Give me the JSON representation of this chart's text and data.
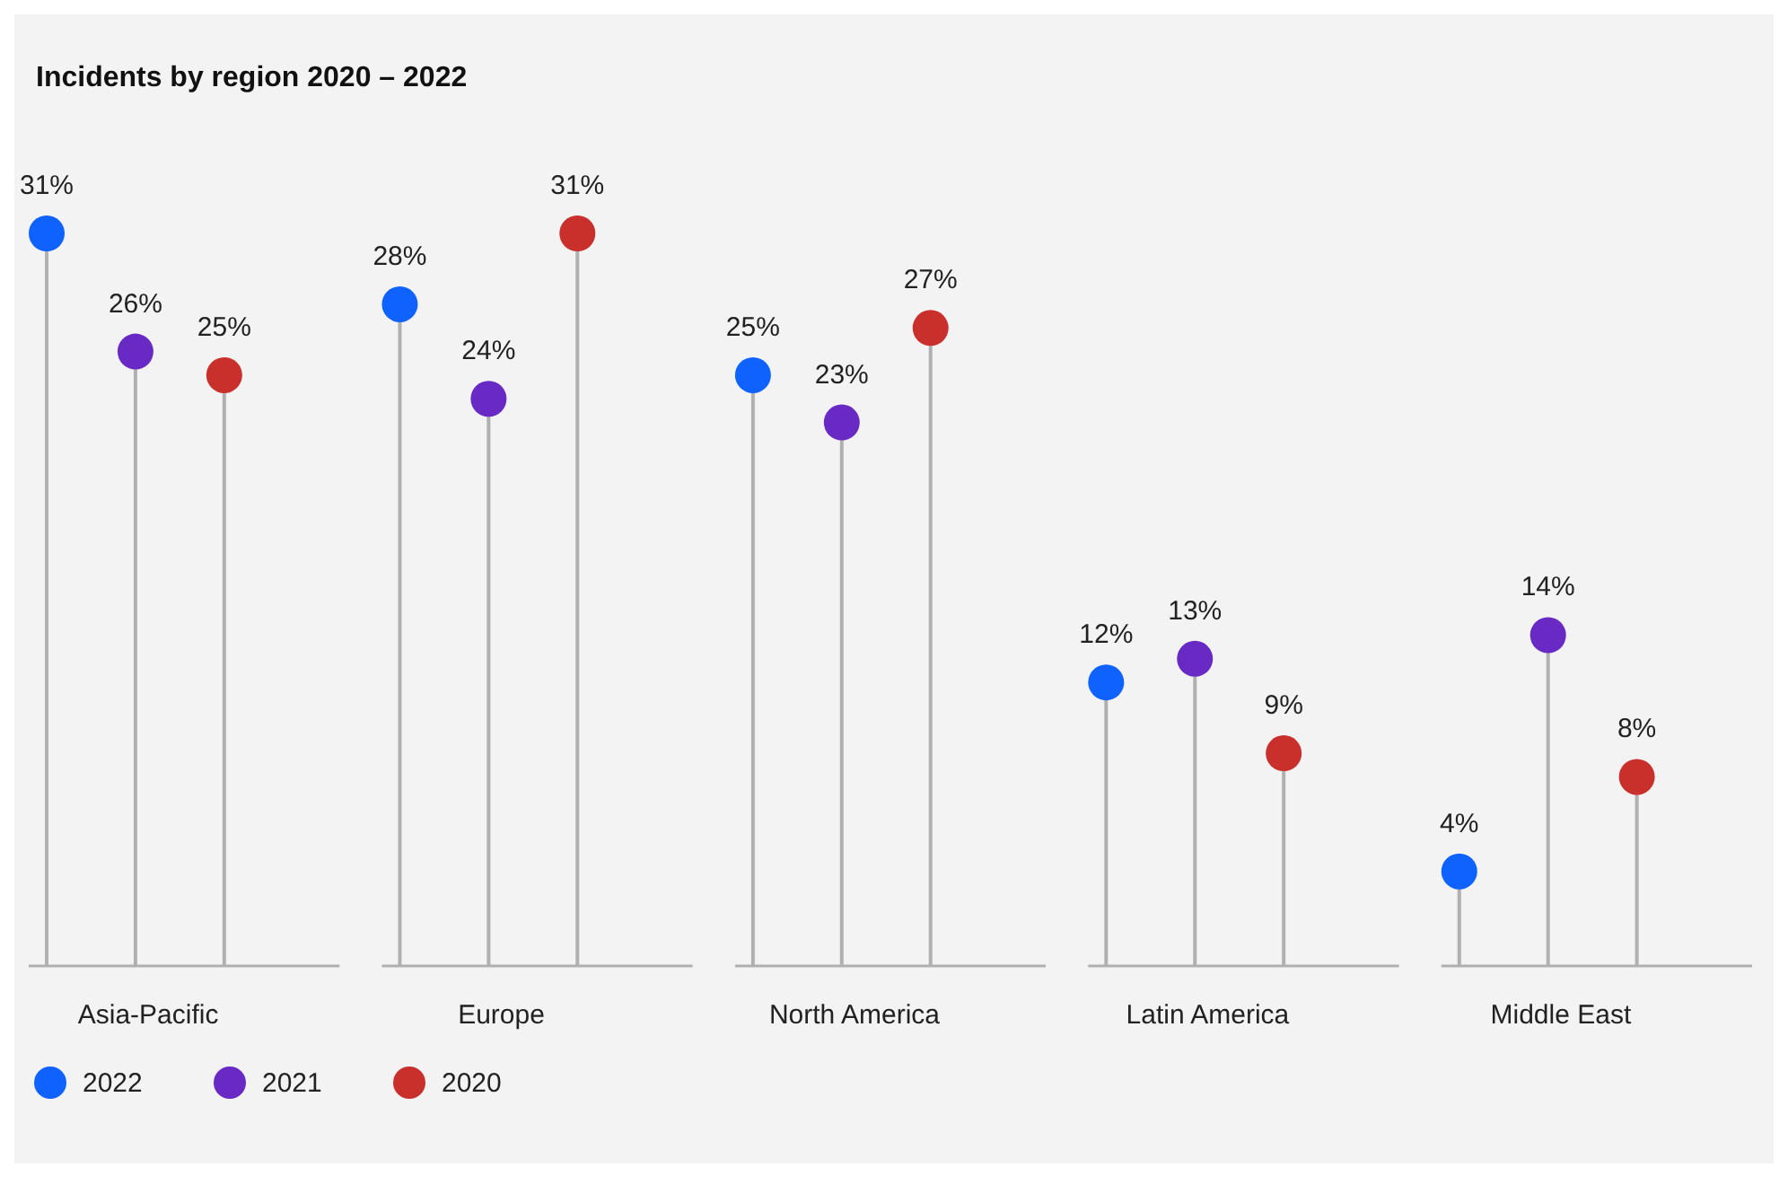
{
  "chart_data": {
    "type": "lollipop",
    "title": "Incidents by region 2020 – 2022",
    "categories": [
      "Asia-Pacific",
      "Europe",
      "North America",
      "Latin America",
      "Middle East"
    ],
    "series": [
      {
        "name": "2022",
        "color": "#0f62fe",
        "values": [
          31,
          28,
          25,
          12,
          4
        ],
        "value_labels": [
          "31%",
          "28%",
          "25%",
          "12%",
          "4%"
        ]
      },
      {
        "name": "2021",
        "color": "#6929c4",
        "values": [
          26,
          24,
          23,
          13,
          14
        ],
        "value_labels": [
          "26%",
          "24%",
          "23%",
          "13%",
          "14%"
        ]
      },
      {
        "name": "2020",
        "color": "#c9302c",
        "values": [
          25,
          31,
          27,
          9,
          8
        ],
        "value_labels": [
          "25%",
          "31%",
          "27%",
          "9%",
          "8%"
        ]
      }
    ],
    "legend": "bottom left",
    "marker": "circle",
    "grid": false
  }
}
